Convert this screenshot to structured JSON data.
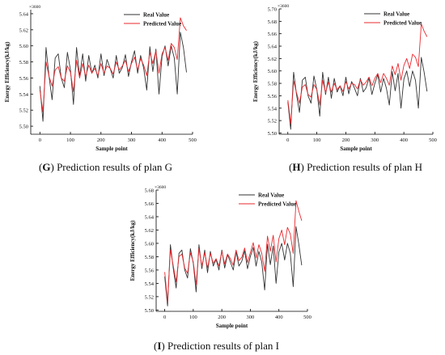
{
  "chart_data": [
    {
      "type": "line",
      "panel_letter": "G",
      "caption": "Prediction results of plan G",
      "xlabel": "Sample point",
      "ylabel": "Energy Efficiency(kJ/kg)",
      "y_multiplier": "×3600",
      "xlim": [
        -30,
        500
      ],
      "ylim": [
        5.49,
        5.645
      ],
      "xticks": [
        0,
        100,
        200,
        300,
        400,
        500
      ],
      "yticks": [
        5.5,
        5.52,
        5.54,
        5.56,
        5.58,
        5.6,
        5.62,
        5.64
      ],
      "legend_position": "top-right",
      "series": [
        {
          "name": "Real Value",
          "color": "#333333",
          "x": [
            0,
            10,
            20,
            30,
            40,
            50,
            60,
            70,
            80,
            90,
            100,
            110,
            120,
            130,
            140,
            150,
            160,
            170,
            180,
            190,
            200,
            210,
            220,
            230,
            240,
            250,
            260,
            270,
            280,
            290,
            300,
            310,
            320,
            330,
            340,
            350,
            360,
            370,
            380,
            390,
            400,
            410,
            420,
            430,
            440,
            450,
            460,
            470,
            480
          ],
          "y": [
            5.55,
            5.506,
            5.598,
            5.562,
            5.533,
            5.585,
            5.59,
            5.56,
            5.548,
            5.592,
            5.57,
            5.527,
            5.598,
            5.562,
            5.59,
            5.556,
            5.588,
            5.566,
            5.576,
            5.56,
            5.59,
            5.563,
            5.583,
            5.572,
            5.56,
            5.588,
            5.566,
            5.573,
            5.589,
            5.562,
            5.58,
            5.594,
            5.566,
            5.588,
            5.572,
            5.545,
            5.599,
            5.568,
            5.596,
            5.54,
            5.587,
            5.6,
            5.575,
            5.6,
            5.585,
            5.54,
            5.617,
            5.598,
            5.567
          ]
        },
        {
          "name": "Predicted Value",
          "color": "#e8292e",
          "x": [
            0,
            10,
            20,
            30,
            40,
            50,
            60,
            70,
            80,
            90,
            100,
            110,
            120,
            130,
            140,
            150,
            160,
            170,
            180,
            190,
            200,
            210,
            220,
            230,
            240,
            250,
            260,
            270,
            280,
            290,
            300,
            310,
            320,
            330,
            340,
            350,
            360,
            370,
            380,
            390,
            400,
            410,
            420,
            430,
            440,
            450,
            460,
            470,
            480
          ],
          "y": [
            5.545,
            5.518,
            5.58,
            5.562,
            5.55,
            5.57,
            5.574,
            5.56,
            5.556,
            5.575,
            5.567,
            5.543,
            5.582,
            5.56,
            5.578,
            5.562,
            5.576,
            5.566,
            5.572,
            5.563,
            5.578,
            5.566,
            5.575,
            5.572,
            5.565,
            5.58,
            5.57,
            5.575,
            5.582,
            5.568,
            5.578,
            5.586,
            5.57,
            5.584,
            5.576,
            5.563,
            5.592,
            5.578,
            5.594,
            5.566,
            5.59,
            5.598,
            5.582,
            5.603,
            5.598,
            5.583,
            5.635,
            5.625,
            5.619
          ]
        }
      ]
    },
    {
      "type": "line",
      "panel_letter": "H",
      "caption": "Prediction results of plan H",
      "xlabel": "Sample point",
      "ylabel": "Energy Efficiency(kJ/kg)",
      "y_multiplier": "×3600",
      "xlim": [
        -30,
        500
      ],
      "ylim": [
        5.498,
        5.7
      ],
      "xticks": [
        0,
        100,
        200,
        300,
        400,
        500
      ],
      "yticks": [
        5.5,
        5.52,
        5.54,
        5.56,
        5.58,
        5.6,
        5.62,
        5.64,
        5.66,
        5.68,
        5.7
      ],
      "legend_position": "top-right",
      "series": [
        {
          "name": "Real Value",
          "color": "#333333",
          "x": [
            0,
            10,
            20,
            30,
            40,
            50,
            60,
            70,
            80,
            90,
            100,
            110,
            120,
            130,
            140,
            150,
            160,
            170,
            180,
            190,
            200,
            210,
            220,
            230,
            240,
            250,
            260,
            270,
            280,
            290,
            300,
            310,
            320,
            330,
            340,
            350,
            360,
            370,
            380,
            390,
            400,
            410,
            420,
            430,
            440,
            450,
            460,
            470,
            480
          ],
          "y": [
            5.55,
            5.506,
            5.598,
            5.562,
            5.533,
            5.585,
            5.59,
            5.56,
            5.548,
            5.592,
            5.57,
            5.527,
            5.598,
            5.562,
            5.59,
            5.556,
            5.588,
            5.566,
            5.576,
            5.56,
            5.59,
            5.563,
            5.583,
            5.572,
            5.56,
            5.588,
            5.566,
            5.573,
            5.589,
            5.562,
            5.58,
            5.594,
            5.566,
            5.588,
            5.572,
            5.545,
            5.599,
            5.568,
            5.596,
            5.54,
            5.587,
            5.6,
            5.575,
            5.6,
            5.585,
            5.54,
            5.622,
            5.598,
            5.567
          ]
        },
        {
          "name": "Predicted Value",
          "color": "#e8292e",
          "x": [
            0,
            10,
            20,
            30,
            40,
            50,
            60,
            70,
            80,
            90,
            100,
            110,
            120,
            130,
            140,
            150,
            160,
            170,
            180,
            190,
            200,
            210,
            220,
            230,
            240,
            250,
            260,
            270,
            280,
            290,
            300,
            310,
            320,
            330,
            340,
            350,
            360,
            370,
            380,
            390,
            400,
            410,
            420,
            430,
            440,
            450,
            460,
            470,
            480
          ],
          "y": [
            5.553,
            5.515,
            5.584,
            5.565,
            5.548,
            5.574,
            5.578,
            5.562,
            5.558,
            5.578,
            5.57,
            5.545,
            5.585,
            5.565,
            5.582,
            5.566,
            5.58,
            5.57,
            5.576,
            5.567,
            5.583,
            5.571,
            5.58,
            5.578,
            5.571,
            5.586,
            5.577,
            5.582,
            5.59,
            5.576,
            5.588,
            5.596,
            5.581,
            5.596,
            5.588,
            5.577,
            5.608,
            5.594,
            5.612,
            5.585,
            5.609,
            5.62,
            5.604,
            5.627,
            5.622,
            5.607,
            5.676,
            5.664,
            5.655
          ]
        }
      ]
    },
    {
      "type": "line",
      "panel_letter": "I",
      "caption": "Prediction results of plan I",
      "xlabel": "Sample point",
      "ylabel": "Energy Efficiency(kJ/kg)",
      "y_multiplier": "×3600",
      "xlim": [
        -30,
        500
      ],
      "ylim": [
        5.498,
        5.68
      ],
      "xticks": [
        0,
        100,
        200,
        300,
        400,
        500
      ],
      "yticks": [
        5.5,
        5.52,
        5.54,
        5.56,
        5.58,
        5.6,
        5.62,
        5.64,
        5.66,
        5.68
      ],
      "legend_position": "top-right",
      "series": [
        {
          "name": "Real Value",
          "color": "#333333",
          "x": [
            0,
            10,
            20,
            30,
            40,
            50,
            60,
            70,
            80,
            90,
            100,
            110,
            120,
            130,
            140,
            150,
            160,
            170,
            180,
            190,
            200,
            210,
            220,
            230,
            240,
            250,
            260,
            270,
            280,
            290,
            300,
            310,
            320,
            330,
            340,
            350,
            360,
            370,
            380,
            390,
            400,
            410,
            420,
            430,
            440,
            450,
            460,
            470,
            480
          ],
          "y": [
            5.55,
            5.506,
            5.598,
            5.562,
            5.533,
            5.585,
            5.59,
            5.56,
            5.548,
            5.592,
            5.57,
            5.527,
            5.598,
            5.562,
            5.59,
            5.556,
            5.588,
            5.566,
            5.576,
            5.56,
            5.59,
            5.563,
            5.583,
            5.572,
            5.56,
            5.588,
            5.566,
            5.573,
            5.589,
            5.562,
            5.58,
            5.594,
            5.566,
            5.588,
            5.572,
            5.53,
            5.599,
            5.568,
            5.596,
            5.54,
            5.587,
            5.6,
            5.575,
            5.6,
            5.585,
            5.535,
            5.625,
            5.598,
            5.567
          ]
        },
        {
          "name": "Predicted Value",
          "color": "#e8292e",
          "x": [
            0,
            10,
            20,
            30,
            40,
            50,
            60,
            70,
            80,
            90,
            100,
            110,
            120,
            130,
            140,
            150,
            160,
            170,
            180,
            190,
            200,
            210,
            220,
            230,
            240,
            250,
            260,
            270,
            280,
            290,
            300,
            310,
            320,
            330,
            340,
            350,
            360,
            370,
            380,
            390,
            400,
            410,
            420,
            430,
            440,
            450,
            460,
            470,
            480
          ],
          "y": [
            5.557,
            5.512,
            5.59,
            5.566,
            5.542,
            5.58,
            5.584,
            5.563,
            5.555,
            5.586,
            5.572,
            5.538,
            5.592,
            5.566,
            5.586,
            5.563,
            5.585,
            5.57,
            5.577,
            5.566,
            5.588,
            5.569,
            5.584,
            5.577,
            5.567,
            5.59,
            5.574,
            5.579,
            5.593,
            5.571,
            5.586,
            5.601,
            5.578,
            5.598,
            5.585,
            5.558,
            5.611,
            5.588,
            5.612,
            5.572,
            5.607,
            5.62,
            5.598,
            5.624,
            5.614,
            5.585,
            5.664,
            5.648,
            5.634
          ]
        }
      ]
    }
  ]
}
